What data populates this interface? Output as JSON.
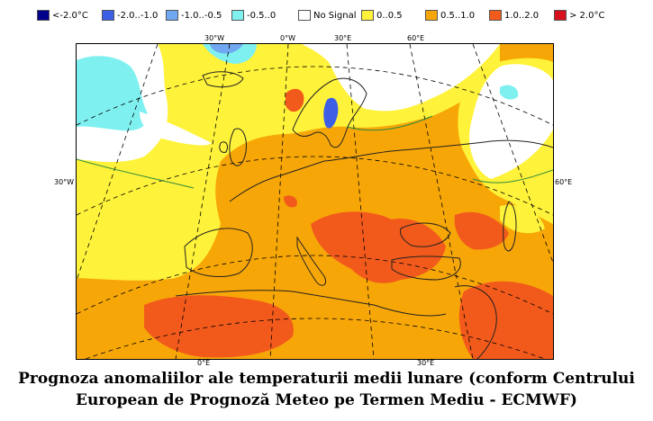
{
  "legend": {
    "items": [
      {
        "label": "<-2.0°C",
        "color": "#00008b"
      },
      {
        "label": "-2.0..-1.0",
        "color": "#3c5fe6"
      },
      {
        "label": "-1.0..-0.5",
        "color": "#6fa8f0"
      },
      {
        "label": "-0.5..0",
        "color": "#7ff0f0"
      },
      {
        "label": "No Signal",
        "color": "#ffffff"
      },
      {
        "label": "0..0.5",
        "color": "#fff23a"
      },
      {
        "label": "0.5..1.0",
        "color": "#f7a608"
      },
      {
        "label": "1.0..2.0",
        "color": "#f25a1c"
      },
      {
        "label": "> 2.0°C",
        "color": "#d8101e"
      }
    ]
  },
  "map": {
    "top_ticks": [
      "30°W",
      "0°W",
      "30°E",
      "60°E"
    ],
    "left_tick": "30°W",
    "right_tick": "60°E",
    "bottom_ticks": [
      "0°E",
      "30°E"
    ]
  },
  "caption": {
    "line1": "Prognoza anomaliilor ale temperaturii medii lunare (conform Centrului",
    "line2": "European de Prognoză Meteo pe Termen Mediu - ECMWF)"
  }
}
